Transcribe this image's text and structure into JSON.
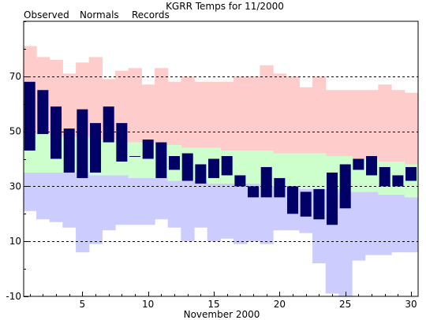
{
  "chart_data": {
    "type": "bar",
    "title": "KGRR Temps for 11/2000",
    "xlabel": "November 2000",
    "ylabel": "",
    "xlim": [
      1,
      30
    ],
    "ylim": [
      -10,
      90
    ],
    "yticks": [
      -10,
      10,
      30,
      50,
      70
    ],
    "xticks": [
      5,
      10,
      15,
      20,
      25,
      30
    ],
    "grid": "dashed horizontal at 10, 30, 50, 70",
    "legend_position": "top-left",
    "legend": [
      {
        "name": "Observed",
        "color": "#000066"
      },
      {
        "name": "Normals",
        "color": "#007700"
      },
      {
        "name": "Records",
        "color": "#cc88cc"
      }
    ],
    "days": [
      1,
      2,
      3,
      4,
      5,
      6,
      7,
      8,
      9,
      10,
      11,
      12,
      13,
      14,
      15,
      16,
      17,
      18,
      19,
      20,
      21,
      22,
      23,
      24,
      25,
      26,
      27,
      28,
      29,
      30
    ],
    "series": [
      {
        "name": "Records",
        "color": "#ffcccc",
        "record_high": [
          81,
          77,
          76,
          71,
          75,
          77,
          69,
          72,
          73,
          67,
          73,
          68,
          70,
          68,
          68,
          68,
          70,
          70,
          74,
          71,
          70,
          66,
          70,
          65,
          65,
          65,
          65,
          67,
          65,
          64
        ],
        "record_low_color": "#ccccff",
        "record_low": [
          21,
          18,
          17,
          15,
          6,
          9,
          14,
          16,
          16,
          16,
          18,
          15,
          10,
          15,
          10,
          11,
          9,
          10,
          9,
          14,
          14,
          13,
          2,
          -9,
          -10,
          3,
          5,
          5,
          6,
          6
        ]
      },
      {
        "name": "Normals",
        "color": "#ccffcc",
        "normal_high": [
          49,
          49,
          48,
          48,
          48,
          47,
          47,
          46,
          46,
          46,
          45,
          45,
          44,
          44,
          44,
          43,
          43,
          43,
          43,
          42,
          42,
          42,
          42,
          41,
          41,
          40,
          40,
          39,
          39,
          38
        ],
        "normal_low": [
          35,
          35,
          35,
          35,
          35,
          34,
          34,
          34,
          33,
          33,
          33,
          32,
          32,
          32,
          31,
          31,
          31,
          31,
          30,
          30,
          30,
          29,
          29,
          29,
          28,
          28,
          28,
          27,
          27,
          26
        ]
      },
      {
        "name": "Observed",
        "color": "#000066",
        "high": [
          68,
          65,
          59,
          51,
          58,
          53,
          59,
          53,
          41,
          47,
          46,
          41,
          42,
          38,
          40,
          41,
          34,
          30,
          37,
          33,
          30,
          28,
          29,
          35,
          38,
          40,
          41,
          37,
          34,
          37
        ],
        "low": [
          43,
          49,
          40,
          35,
          33,
          35,
          46,
          39,
          41,
          40,
          33,
          36,
          32,
          31,
          33,
          34,
          30,
          26,
          26,
          26,
          20,
          19,
          18,
          16,
          22,
          36,
          34,
          30,
          30,
          32
        ]
      }
    ]
  }
}
